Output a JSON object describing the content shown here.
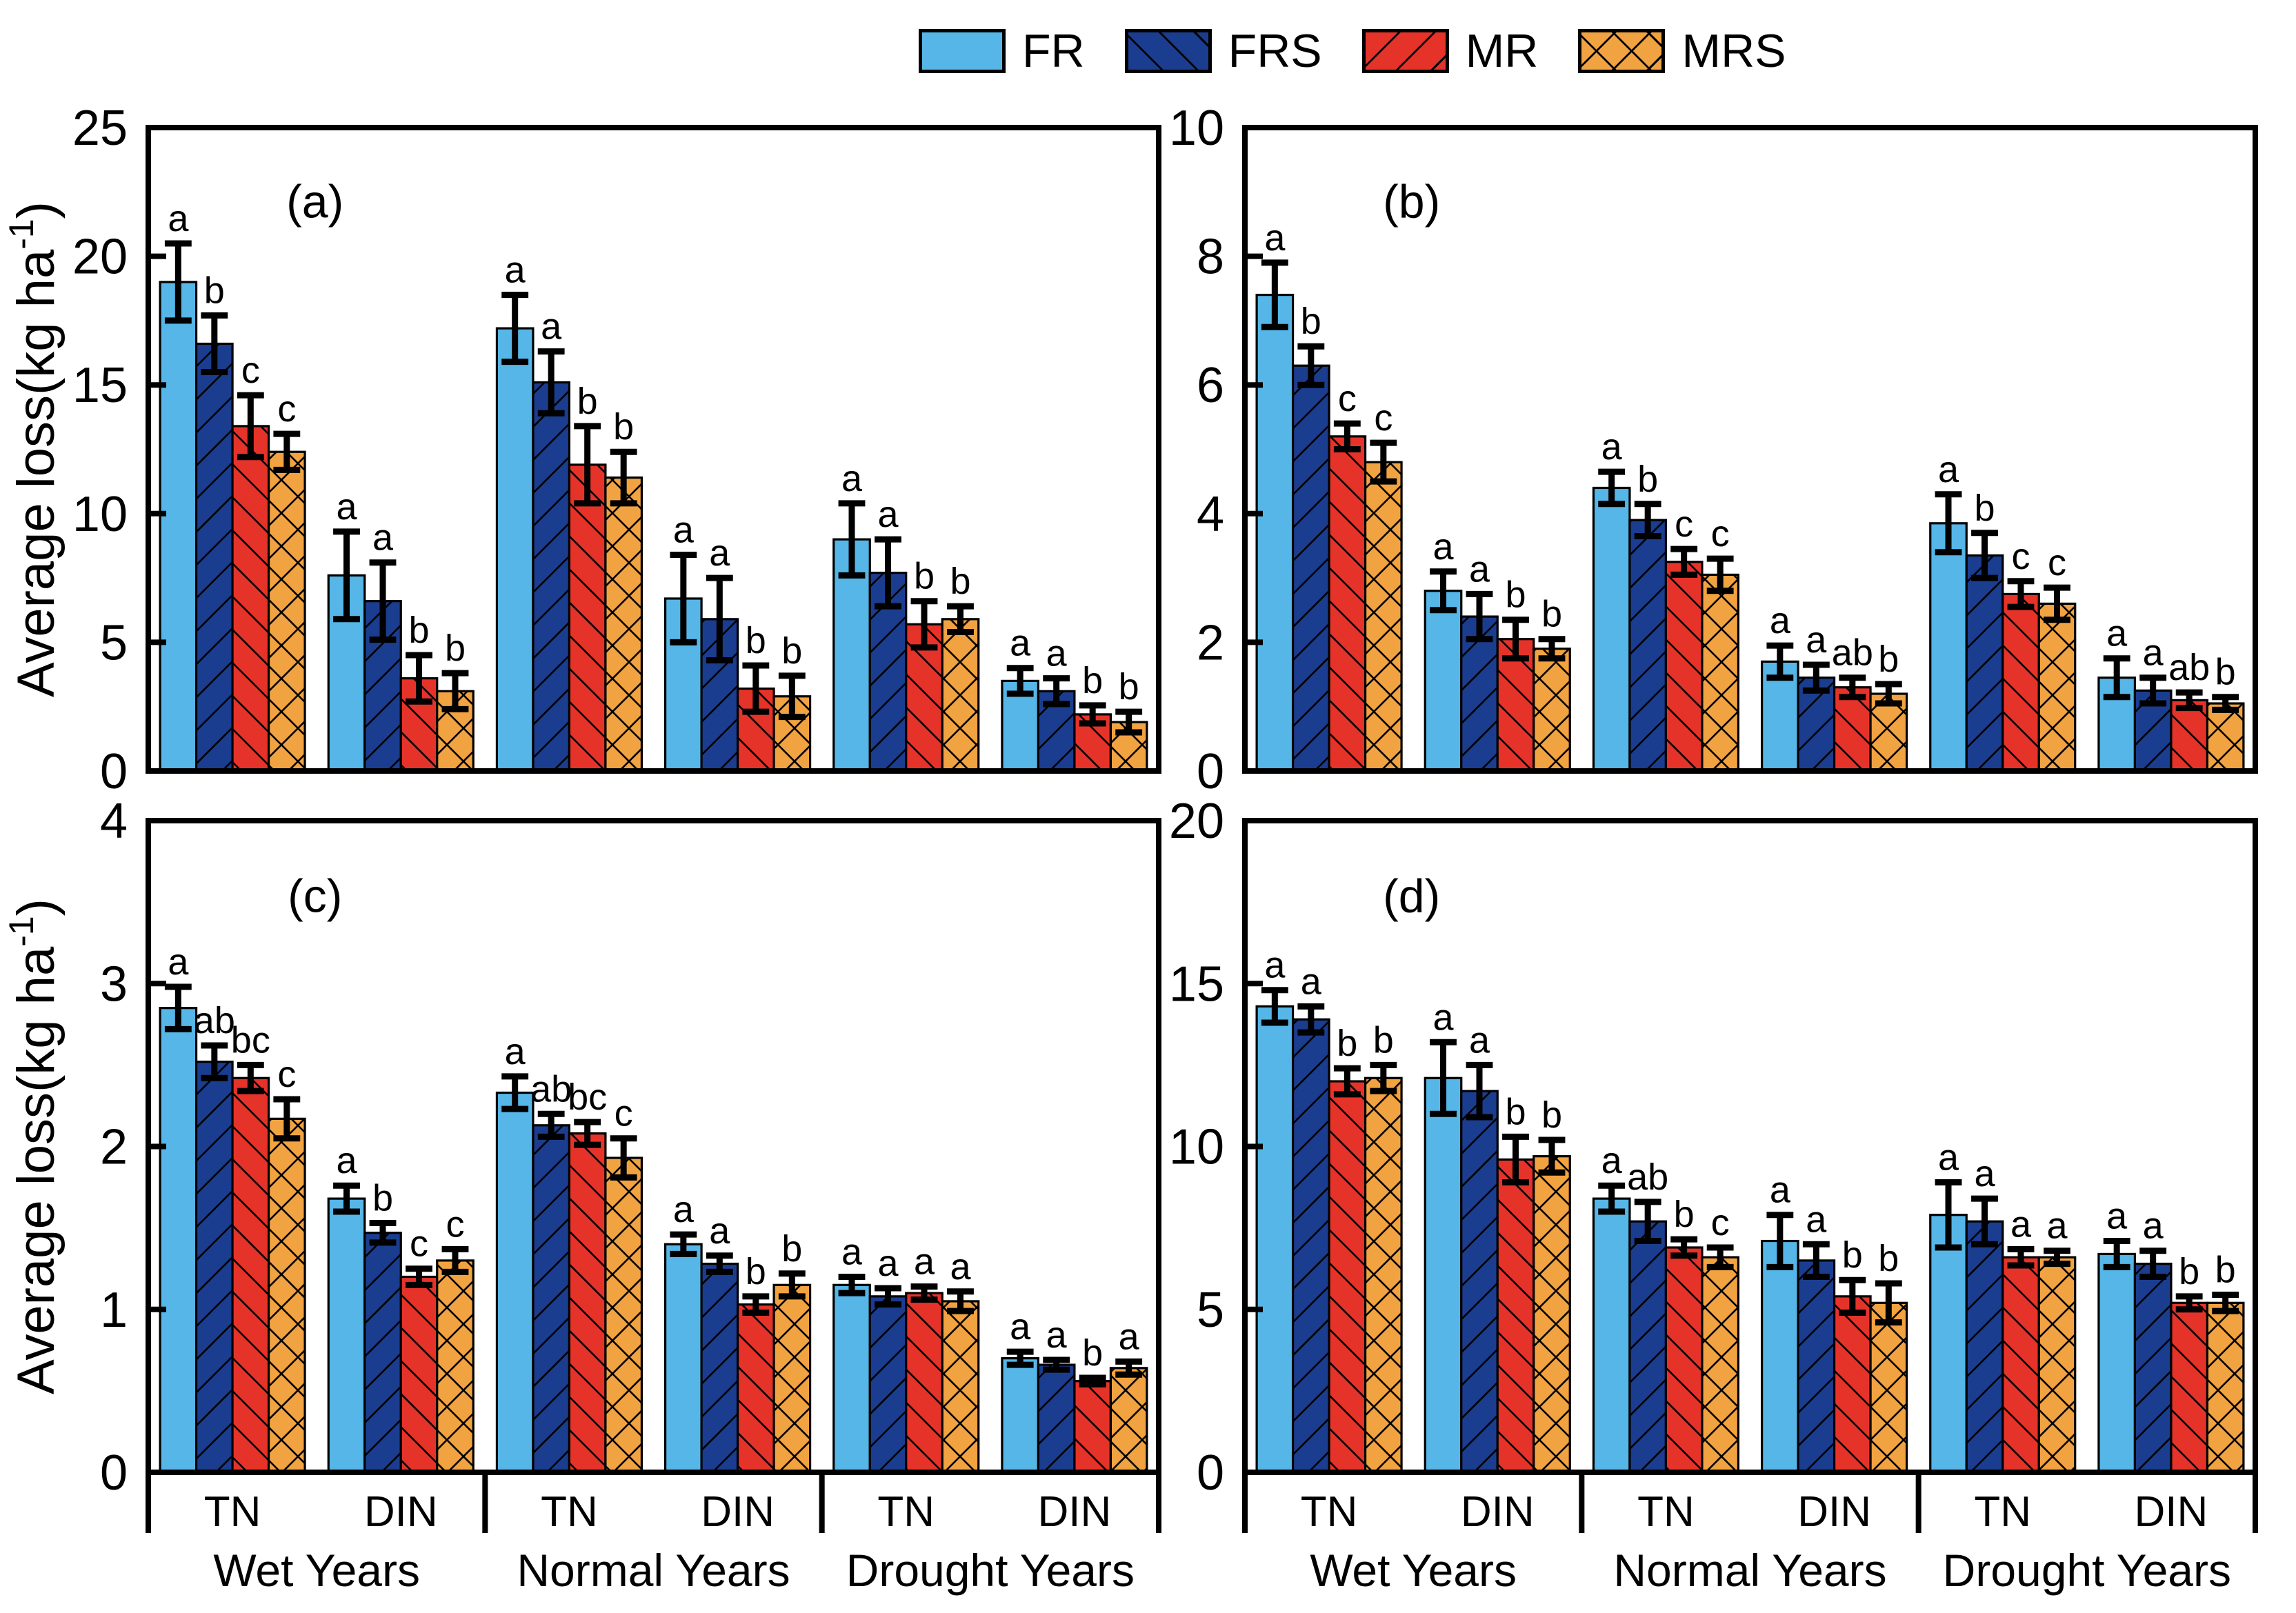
{
  "legend": {
    "items": [
      {
        "label": "FR",
        "color": "#55b6e7",
        "hatch": "none"
      },
      {
        "label": "FRS",
        "color": "#1b3d8f",
        "hatch": "/"
      },
      {
        "label": "MR",
        "color": "#e6332a",
        "hatch": "\\"
      },
      {
        "label": "MRS",
        "color": "#f2a341",
        "hatch": "x"
      }
    ]
  },
  "axis": {
    "ylabel_pre": "Average loss(kg ha",
    "ylabel_sup": "-1",
    "ylabel_post": ")"
  },
  "x_axis": {
    "group_labels": [
      "TN",
      "DIN",
      "TN",
      "DIN",
      "TN",
      "DIN"
    ],
    "section_labels": [
      "Wet Years",
      "Normal Years",
      "Drought Years"
    ]
  },
  "chart_data": [
    {
      "type": "bar",
      "panel_label": "(a)",
      "ylabel": "Average loss(kg ha-1)",
      "ylim": [
        0,
        25
      ],
      "yticks": [
        0,
        5,
        10,
        15,
        20,
        25
      ],
      "categories": [
        "Wet-TN",
        "Wet-DIN",
        "Normal-TN",
        "Normal-DIN",
        "Drought-TN",
        "Drought-DIN"
      ],
      "series": [
        {
          "name": "FR",
          "values": [
            19.0,
            7.6,
            17.2,
            6.7,
            9.0,
            3.5
          ],
          "errors": [
            1.5,
            1.7,
            1.3,
            1.7,
            1.4,
            0.5
          ],
          "letters": [
            "a",
            "a",
            "a",
            "a",
            "a",
            "a"
          ]
        },
        {
          "name": "FRS",
          "values": [
            16.6,
            6.6,
            15.1,
            5.9,
            7.7,
            3.1
          ],
          "errors": [
            1.1,
            1.5,
            1.2,
            1.6,
            1.3,
            0.5
          ],
          "letters": [
            "b",
            "a",
            "a",
            "a",
            "a",
            "a"
          ]
        },
        {
          "name": "MR",
          "values": [
            13.4,
            3.6,
            11.9,
            3.2,
            5.7,
            2.2
          ],
          "errors": [
            1.2,
            0.9,
            1.5,
            0.9,
            0.9,
            0.35
          ],
          "letters": [
            "c",
            "b",
            "b",
            "b",
            "b",
            "b"
          ]
        },
        {
          "name": "MRS",
          "values": [
            12.4,
            3.1,
            11.4,
            2.9,
            5.9,
            1.9
          ],
          "errors": [
            0.7,
            0.7,
            1.0,
            0.8,
            0.5,
            0.4
          ],
          "letters": [
            "c",
            "b",
            "b",
            "b",
            "b",
            "b"
          ]
        }
      ]
    },
    {
      "type": "bar",
      "panel_label": "(b)",
      "ylabel": "",
      "ylim": [
        0,
        10
      ],
      "yticks": [
        0,
        2,
        4,
        6,
        8,
        10
      ],
      "categories": [
        "Wet-TN",
        "Wet-DIN",
        "Normal-TN",
        "Normal-DIN",
        "Drought-TN",
        "Drought-DIN"
      ],
      "series": [
        {
          "name": "FR",
          "values": [
            7.4,
            2.8,
            4.4,
            1.7,
            3.85,
            1.45
          ],
          "errors": [
            0.5,
            0.3,
            0.25,
            0.25,
            0.45,
            0.3
          ],
          "letters": [
            "a",
            "a",
            "a",
            "a",
            "a",
            "a"
          ]
        },
        {
          "name": "FRS",
          "values": [
            6.3,
            2.4,
            3.9,
            1.45,
            3.35,
            1.25
          ],
          "errors": [
            0.3,
            0.35,
            0.25,
            0.2,
            0.35,
            0.2
          ],
          "letters": [
            "b",
            "a",
            "b",
            "a",
            "b",
            "a"
          ]
        },
        {
          "name": "MR",
          "values": [
            5.2,
            2.05,
            3.25,
            1.3,
            2.75,
            1.1
          ],
          "errors": [
            0.2,
            0.3,
            0.2,
            0.15,
            0.2,
            0.12
          ],
          "letters": [
            "c",
            "b",
            "c",
            "ab",
            "c",
            "ab"
          ]
        },
        {
          "name": "MRS",
          "values": [
            4.8,
            1.9,
            3.05,
            1.2,
            2.6,
            1.05
          ],
          "errors": [
            0.3,
            0.15,
            0.25,
            0.15,
            0.25,
            0.1
          ],
          "letters": [
            "c",
            "b",
            "c",
            "b",
            "c",
            "b"
          ]
        }
      ]
    },
    {
      "type": "bar",
      "panel_label": "(c)",
      "ylabel": "Average loss(kg ha-1)",
      "ylim": [
        0,
        4
      ],
      "yticks": [
        0,
        1,
        2,
        3,
        4
      ],
      "categories": [
        "Wet-TN",
        "Wet-DIN",
        "Normal-TN",
        "Normal-DIN",
        "Drought-TN",
        "Drought-DIN"
      ],
      "series": [
        {
          "name": "FR",
          "values": [
            2.85,
            1.68,
            2.33,
            1.4,
            1.15,
            0.7
          ],
          "errors": [
            0.13,
            0.08,
            0.1,
            0.06,
            0.05,
            0.04
          ],
          "letters": [
            "a",
            "a",
            "a",
            "a",
            "a",
            "a"
          ]
        },
        {
          "name": "FRS",
          "values": [
            2.52,
            1.47,
            2.13,
            1.28,
            1.08,
            0.66
          ],
          "errors": [
            0.1,
            0.06,
            0.07,
            0.05,
            0.05,
            0.03
          ],
          "letters": [
            "ab",
            "b",
            "ab",
            "a",
            "a",
            "a"
          ]
        },
        {
          "name": "MR",
          "values": [
            2.42,
            1.2,
            2.08,
            1.03,
            1.1,
            0.56
          ],
          "errors": [
            0.08,
            0.05,
            0.07,
            0.05,
            0.04,
            0.02
          ],
          "letters": [
            "bc",
            "c",
            "bc",
            "b",
            "a",
            "b"
          ]
        },
        {
          "name": "MRS",
          "values": [
            2.17,
            1.3,
            1.93,
            1.15,
            1.05,
            0.64
          ],
          "errors": [
            0.12,
            0.07,
            0.12,
            0.07,
            0.06,
            0.04
          ],
          "letters": [
            "c",
            "c",
            "c",
            "b",
            "a",
            "a"
          ]
        }
      ]
    },
    {
      "type": "bar",
      "panel_label": "(d)",
      "ylabel": "",
      "ylim": [
        0,
        20
      ],
      "yticks": [
        0,
        5,
        10,
        15,
        20
      ],
      "categories": [
        "Wet-TN",
        "Wet-DIN",
        "Normal-TN",
        "Normal-DIN",
        "Drought-TN",
        "Drought-DIN"
      ],
      "series": [
        {
          "name": "FR",
          "values": [
            14.3,
            12.1,
            8.4,
            7.1,
            7.9,
            6.7
          ],
          "errors": [
            0.5,
            1.1,
            0.4,
            0.8,
            1.0,
            0.4
          ],
          "letters": [
            "a",
            "a",
            "a",
            "a",
            "a",
            "a"
          ]
        },
        {
          "name": "FRS",
          "values": [
            13.9,
            11.7,
            7.7,
            6.5,
            7.7,
            6.4
          ],
          "errors": [
            0.4,
            0.8,
            0.6,
            0.5,
            0.7,
            0.4
          ],
          "letters": [
            "a",
            "a",
            "ab",
            "a",
            "a",
            "a"
          ]
        },
        {
          "name": "MR",
          "values": [
            12.0,
            9.6,
            6.9,
            5.4,
            6.6,
            5.2
          ],
          "errors": [
            0.4,
            0.7,
            0.25,
            0.5,
            0.25,
            0.2
          ],
          "letters": [
            "b",
            "b",
            "b",
            "b",
            "a",
            "b"
          ]
        },
        {
          "name": "MRS",
          "values": [
            12.1,
            9.7,
            6.6,
            5.2,
            6.6,
            5.2
          ],
          "errors": [
            0.4,
            0.5,
            0.3,
            0.6,
            0.2,
            0.25
          ],
          "letters": [
            "b",
            "b",
            "c",
            "b",
            "a",
            "b"
          ]
        }
      ]
    }
  ]
}
